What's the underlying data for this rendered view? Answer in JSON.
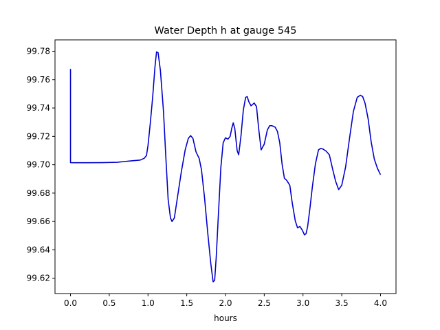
{
  "chart_data": {
    "type": "line",
    "title": "Water Depth h at gauge 545",
    "xlabel": "hours",
    "ylabel": "",
    "xlim": [
      -0.2,
      4.2
    ],
    "ylim": [
      99.6092,
      99.788
    ],
    "xticks": [
      0.0,
      0.5,
      1.0,
      1.5,
      2.0,
      2.5,
      3.0,
      3.5,
      4.0
    ],
    "xtick_labels": [
      "0.0",
      "0.5",
      "1.0",
      "1.5",
      "2.0",
      "2.5",
      "3.0",
      "3.5",
      "4.0"
    ],
    "yticks": [
      99.62,
      99.64,
      99.66,
      99.68,
      99.7,
      99.72,
      99.74,
      99.76,
      99.78
    ],
    "ytick_labels": [
      "99.62",
      "99.64",
      "99.66",
      "99.68",
      "99.70",
      "99.72",
      "99.74",
      "99.76",
      "99.78"
    ],
    "grid": false,
    "legend": "none",
    "series": [
      {
        "color": "#0000cc",
        "x": [
          0.0,
          0.0,
          0.05,
          0.2,
          0.4,
          0.6,
          0.7,
          0.8,
          0.9,
          0.95,
          0.98,
          1.0,
          1.03,
          1.06,
          1.09,
          1.11,
          1.13,
          1.16,
          1.2,
          1.23,
          1.26,
          1.29,
          1.31,
          1.34,
          1.38,
          1.43,
          1.48,
          1.52,
          1.55,
          1.58,
          1.62,
          1.66,
          1.69,
          1.73,
          1.77,
          1.81,
          1.84,
          1.86,
          1.88,
          1.91,
          1.94,
          1.97,
          2.0,
          2.03,
          2.06,
          2.08,
          2.1,
          2.12,
          2.15,
          2.17,
          2.2,
          2.23,
          2.26,
          2.28,
          2.3,
          2.33,
          2.37,
          2.4,
          2.43,
          2.46,
          2.5,
          2.54,
          2.57,
          2.6,
          2.64,
          2.67,
          2.7,
          2.73,
          2.76,
          2.79,
          2.83,
          2.86,
          2.9,
          2.93,
          2.96,
          2.99,
          3.02,
          3.04,
          3.06,
          3.09,
          3.12,
          3.16,
          3.2,
          3.23,
          3.26,
          3.3,
          3.34,
          3.38,
          3.42,
          3.46,
          3.5,
          3.55,
          3.6,
          3.65,
          3.7,
          3.74,
          3.77,
          3.8,
          3.84,
          3.88,
          3.92,
          3.96,
          4.0
        ],
        "y": [
          99.7675,
          99.7015,
          99.7014,
          99.7014,
          99.7015,
          99.7017,
          99.7023,
          99.7028,
          99.7033,
          99.7045,
          99.7065,
          99.7135,
          99.7295,
          99.7475,
          99.769,
          99.7795,
          99.779,
          99.7665,
          99.7375,
          99.7055,
          99.6755,
          99.6625,
          99.66,
          99.6625,
          99.677,
          99.695,
          99.7105,
          99.7185,
          99.7205,
          99.7185,
          99.709,
          99.7045,
          99.6965,
          99.6765,
          99.6525,
          99.6305,
          99.6175,
          99.6185,
          99.6345,
          99.6665,
          99.698,
          99.7155,
          99.719,
          99.718,
          99.72,
          99.7255,
          99.7295,
          99.7255,
          99.71,
          99.707,
          99.7205,
          99.7385,
          99.7475,
          99.748,
          99.7445,
          99.7415,
          99.7435,
          99.741,
          99.7245,
          99.7105,
          99.7145,
          99.7245,
          99.7275,
          99.7275,
          99.7265,
          99.7235,
          99.7155,
          99.7005,
          99.6905,
          99.689,
          99.6855,
          99.6735,
          99.6605,
          99.6555,
          99.6565,
          99.654,
          99.6505,
          99.6515,
          99.6565,
          99.6695,
          99.684,
          99.7005,
          99.7105,
          99.7115,
          99.711,
          99.7095,
          99.707,
          99.6975,
          99.6885,
          99.6825,
          99.6855,
          99.6985,
          99.7185,
          99.7375,
          99.7475,
          99.749,
          99.748,
          99.7435,
          99.7325,
          99.716,
          99.704,
          99.6975,
          99.693
        ]
      }
    ]
  }
}
